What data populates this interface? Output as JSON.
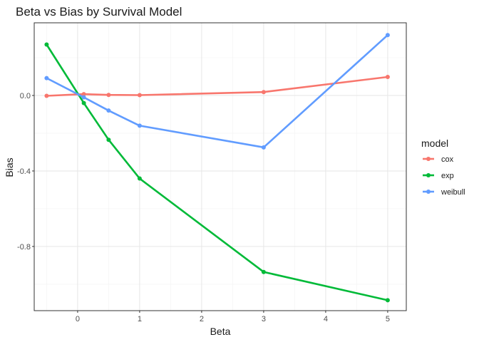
{
  "chart_data": {
    "type": "line",
    "title": "Beta vs Bias by Survival Model",
    "xlabel": "Beta",
    "ylabel": "Bias",
    "x": [
      -0.5,
      0.1,
      0.5,
      1,
      3,
      5
    ],
    "series": [
      {
        "name": "cox",
        "color": "#F8766D",
        "values": [
          -0.002,
          0.007,
          0.003,
          0.002,
          0.018,
          0.098
        ]
      },
      {
        "name": "exp",
        "color": "#00BA38",
        "values": [
          0.27,
          -0.04,
          -0.235,
          -0.44,
          -0.935,
          -1.085
        ]
      },
      {
        "name": "weibull",
        "color": "#619CFF",
        "values": [
          0.092,
          -0.01,
          -0.08,
          -0.16,
          -0.275,
          0.32
        ]
      }
    ],
    "xlim": [
      -0.7,
      5.3
    ],
    "ylim": [
      -1.14,
      0.385
    ],
    "xticks": [
      0,
      1,
      2,
      3,
      4,
      5
    ],
    "yticks": [
      0.0,
      -0.4,
      -0.8
    ],
    "ytick_labels": [
      "0.0",
      "-0.4",
      "-0.8"
    ],
    "grid": true,
    "legend": {
      "title": "model",
      "placement": "right"
    }
  }
}
